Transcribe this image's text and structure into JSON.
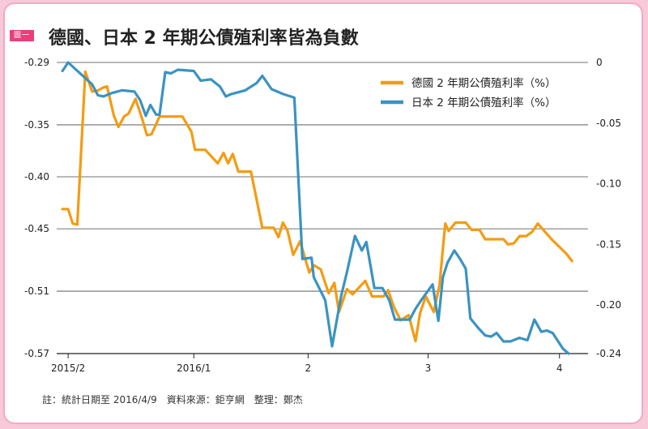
{
  "figure_tag": "圖一",
  "title": "德國、日本 2 年期公債殖利率皆為負數",
  "note": "註：統計日期至 2016/4/9　資料來源：鉅亨網　整理：鄭杰",
  "colors": {
    "germany": "#f39c12",
    "japan": "#3b93c1"
  },
  "chart_data": {
    "type": "line",
    "title": "德國、日本 2 年期公債殖利率皆為負數",
    "grid": "horizontal",
    "legend_position": "top-right",
    "x_ticks": [
      {
        "label": "2015/2",
        "x": 0.5
      },
      {
        "label": "2016/1",
        "x": 11.5
      },
      {
        "label": "2",
        "x": 21.5
      },
      {
        "label": "3",
        "x": 32
      },
      {
        "label": "4",
        "x": 43.5
      }
    ],
    "xlim": [
      -0.5,
      46
    ],
    "left_axis": {
      "ylim": [
        -0.57,
        -0.29
      ],
      "ticks": [
        "-0.29",
        "-0.35",
        "-0.40",
        "-0.45",
        "-0.51",
        "-0.57"
      ],
      "tick_values": [
        -0.29,
        -0.35,
        -0.4,
        -0.45,
        -0.51,
        -0.57
      ]
    },
    "right_axis": {
      "ylim": [
        -0.24,
        0
      ],
      "ticks": [
        "0",
        "-0.05",
        "-0.10",
        "-0.15",
        "-0.20",
        "-0.24"
      ],
      "tick_values": [
        0,
        -0.05,
        -0.1,
        -0.15,
        -0.2,
        -0.24
      ]
    },
    "series": [
      {
        "name": "德國 2 年期公債殖利率（%）",
        "axis": "left",
        "points": [
          [
            0,
            -0.431
          ],
          [
            0.5,
            -0.431
          ],
          [
            0.9,
            -0.445
          ],
          [
            1.3,
            -0.446
          ],
          [
            2.0,
            -0.299
          ],
          [
            2.6,
            -0.318
          ],
          [
            3.1,
            -0.317
          ],
          [
            3.6,
            -0.314
          ],
          [
            3.9,
            -0.313
          ],
          [
            4.5,
            -0.341
          ],
          [
            4.9,
            -0.352
          ],
          [
            5.4,
            -0.342
          ],
          [
            5.8,
            -0.339
          ],
          [
            6.4,
            -0.325
          ],
          [
            7.0,
            -0.345
          ],
          [
            7.4,
            -0.36
          ],
          [
            7.8,
            -0.359
          ],
          [
            8.5,
            -0.342
          ],
          [
            9.0,
            -0.342
          ],
          [
            10.5,
            -0.342
          ],
          [
            11.3,
            -0.357
          ],
          [
            11.6,
            -0.374
          ],
          [
            12.5,
            -0.374
          ],
          [
            13.6,
            -0.387
          ],
          [
            14.1,
            -0.377
          ],
          [
            14.5,
            -0.387
          ],
          [
            14.9,
            -0.378
          ],
          [
            15.4,
            -0.395
          ],
          [
            16.5,
            -0.395
          ],
          [
            17.5,
            -0.449
          ],
          [
            18.5,
            -0.449
          ],
          [
            18.9,
            -0.458
          ],
          [
            19.3,
            -0.444
          ],
          [
            19.7,
            -0.452
          ],
          [
            20.2,
            -0.475
          ],
          [
            20.8,
            -0.462
          ],
          [
            21.6,
            -0.492
          ],
          [
            22.0,
            -0.485
          ],
          [
            22.6,
            -0.489
          ],
          [
            23.3,
            -0.512
          ],
          [
            23.8,
            -0.502
          ],
          [
            24.2,
            -0.53
          ],
          [
            24.9,
            -0.508
          ],
          [
            25.4,
            -0.513
          ],
          [
            26.5,
            -0.5
          ],
          [
            27.1,
            -0.515
          ],
          [
            28.1,
            -0.515
          ],
          [
            28.5,
            -0.509
          ],
          [
            29.0,
            -0.525
          ],
          [
            29.6,
            -0.538
          ],
          [
            30.3,
            -0.533
          ],
          [
            30.9,
            -0.558
          ],
          [
            31.3,
            -0.531
          ],
          [
            31.8,
            -0.515
          ],
          [
            32.5,
            -0.53
          ],
          [
            33.0,
            -0.504
          ],
          [
            33.5,
            -0.445
          ],
          [
            33.8,
            -0.452
          ],
          [
            34.4,
            -0.444
          ],
          [
            35.3,
            -0.444
          ],
          [
            35.8,
            -0.451
          ],
          [
            36.5,
            -0.451
          ],
          [
            37.0,
            -0.46
          ],
          [
            38.6,
            -0.46
          ],
          [
            39.0,
            -0.465
          ],
          [
            39.5,
            -0.464
          ],
          [
            40.0,
            -0.457
          ],
          [
            40.6,
            -0.457
          ],
          [
            41.1,
            -0.453
          ],
          [
            41.6,
            -0.445
          ],
          [
            42.8,
            -0.46
          ],
          [
            44.1,
            -0.474
          ],
          [
            44.6,
            -0.481
          ]
        ]
      },
      {
        "name": "日本 2 年期公債殖利率（%）",
        "axis": "right",
        "points": [
          [
            0,
            -0.007
          ],
          [
            0.5,
            0.0
          ],
          [
            2.6,
            -0.018
          ],
          [
            3.1,
            -0.027
          ],
          [
            3.6,
            -0.028
          ],
          [
            4.4,
            -0.025
          ],
          [
            5.2,
            -0.023
          ],
          [
            6.3,
            -0.024
          ],
          [
            6.8,
            -0.031
          ],
          [
            7.3,
            -0.044
          ],
          [
            7.7,
            -0.035
          ],
          [
            8.2,
            -0.043
          ],
          [
            8.5,
            -0.043
          ],
          [
            9.0,
            -0.008
          ],
          [
            9.5,
            -0.009
          ],
          [
            10.1,
            -0.006
          ],
          [
            11.5,
            -0.007
          ],
          [
            12.1,
            -0.015
          ],
          [
            13.0,
            -0.014
          ],
          [
            13.8,
            -0.02
          ],
          [
            14.3,
            -0.028
          ],
          [
            14.8,
            -0.026
          ],
          [
            16.0,
            -0.023
          ],
          [
            17.0,
            -0.017
          ],
          [
            17.5,
            -0.011
          ],
          [
            18.3,
            -0.022
          ],
          [
            19.3,
            -0.026
          ],
          [
            20.3,
            -0.029
          ],
          [
            21.0,
            -0.162
          ],
          [
            21.8,
            -0.161
          ],
          [
            22.0,
            -0.177
          ],
          [
            23.0,
            -0.196
          ],
          [
            23.6,
            -0.234
          ],
          [
            24.4,
            -0.192
          ],
          [
            24.9,
            -0.173
          ],
          [
            25.6,
            -0.143
          ],
          [
            26.2,
            -0.155
          ],
          [
            26.6,
            -0.148
          ],
          [
            27.3,
            -0.186
          ],
          [
            28.0,
            -0.186
          ],
          [
            28.6,
            -0.196
          ],
          [
            29.1,
            -0.212
          ],
          [
            30.4,
            -0.212
          ],
          [
            30.9,
            -0.203
          ],
          [
            31.4,
            -0.196
          ],
          [
            32.4,
            -0.183
          ],
          [
            32.9,
            -0.213
          ],
          [
            33.3,
            -0.177
          ],
          [
            33.7,
            -0.165
          ],
          [
            34.3,
            -0.155
          ],
          [
            34.8,
            -0.162
          ],
          [
            35.3,
            -0.17
          ],
          [
            35.7,
            -0.211
          ],
          [
            36.4,
            -0.219
          ],
          [
            37.0,
            -0.225
          ],
          [
            37.5,
            -0.226
          ],
          [
            38.0,
            -0.223
          ],
          [
            38.6,
            -0.23
          ],
          [
            39.2,
            -0.23
          ],
          [
            40.0,
            -0.227
          ],
          [
            40.7,
            -0.229
          ],
          [
            41.3,
            -0.212
          ],
          [
            41.9,
            -0.222
          ],
          [
            42.4,
            -0.221
          ],
          [
            42.9,
            -0.223
          ],
          [
            43.8,
            -0.236
          ],
          [
            44.3,
            -0.24
          ]
        ]
      }
    ]
  }
}
